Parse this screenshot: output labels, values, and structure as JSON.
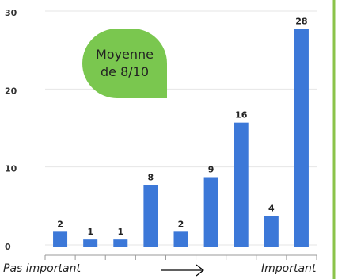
{
  "chart_data": {
    "type": "bar",
    "categories": [
      null,
      null,
      null,
      null,
      null,
      null,
      null,
      null,
      null
    ],
    "values": [
      2,
      1,
      1,
      8,
      2,
      9,
      16,
      4,
      28
    ],
    "color": "#3c78d8",
    "ylim": [
      0,
      30
    ],
    "yticks": [
      0,
      10,
      20,
      30
    ],
    "grid": true,
    "annotation": "Moyenne de 8/10",
    "x_label_left": "Pas important",
    "x_label_right": "Important"
  }
}
